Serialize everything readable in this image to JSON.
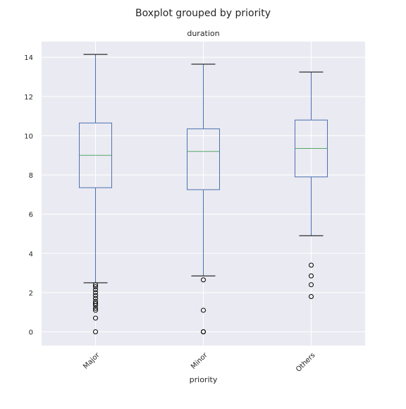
{
  "page_title": "Boxplot grouped by priority",
  "chart_data": {
    "type": "boxplot",
    "suptitle": "Boxplot grouped by priority",
    "title": "duration",
    "xlabel": "priority",
    "ylabel": "",
    "categories": [
      "Major",
      "Minor",
      "Others"
    ],
    "ylim": [
      -0.7,
      14.8
    ],
    "yticks": [
      0,
      2,
      4,
      6,
      8,
      10,
      12,
      14
    ],
    "ytick_labels": [
      "0",
      "2",
      "4",
      "6",
      "8",
      "10",
      "12",
      "14"
    ],
    "grid": true,
    "boxes": [
      {
        "category": "Major",
        "whisker_low": 2.5,
        "q1": 7.35,
        "median": 9.0,
        "q3": 10.65,
        "whisker_high": 14.15,
        "outliers": [
          2.4,
          2.3,
          2.15,
          2.0,
          1.85,
          1.7,
          1.55,
          1.45,
          1.35,
          1.2,
          1.1,
          0.7,
          0.0
        ]
      },
      {
        "category": "Minor",
        "whisker_low": 2.85,
        "q1": 7.25,
        "median": 9.2,
        "q3": 10.35,
        "whisker_high": 13.65,
        "outliers": [
          2.65,
          1.1,
          0.0,
          0.0
        ]
      },
      {
        "category": "Others",
        "whisker_low": 4.9,
        "q1": 7.9,
        "median": 9.35,
        "q3": 10.8,
        "whisker_high": 13.25,
        "outliers": [
          3.4,
          2.85,
          2.4,
          1.8
        ]
      }
    ],
    "colors": {
      "background": "#eaeaf2",
      "grid": "#ffffff",
      "box": "#4c72b0",
      "median": "#55a868",
      "whisker_cap": "#000000",
      "outlier": "#000000"
    }
  }
}
